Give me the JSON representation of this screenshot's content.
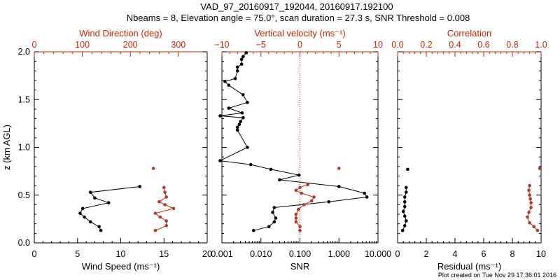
{
  "title_line1": "VAD_97_20160917_192044, 20160917.192100",
  "title_line2": "Nbeams = 8, Elevation angle = 75.0°, scan duration = 27.3 s, SNR Threshold = 0.008",
  "footer": "Plot created on Tue Nov 29 17:36:01 2016",
  "colors": {
    "black": "#000000",
    "red": "#cc2200",
    "dots_red": "#b03a2e"
  },
  "chart_data": [
    {
      "type": "line",
      "ylabel": "z (km AGL)",
      "ylim": [
        0,
        2
      ],
      "yticks": [
        "0.0",
        "0.5",
        "1.0",
        "1.5",
        "2.0"
      ],
      "bottom_axis": {
        "label": "Wind Speed (ms⁻¹)",
        "lim": [
          0,
          20
        ],
        "ticks": [
          "0",
          "5",
          "10",
          "15",
          "20"
        ]
      },
      "top_axis": {
        "label": "Wind Direction (deg)",
        "lim": [
          0,
          360
        ],
        "ticks": [
          "0",
          "100",
          "200",
          "300"
        ]
      },
      "series": [
        {
          "axis": "bottom",
          "color": "black",
          "points": [
            [
              7.7,
              0.13
            ],
            [
              7.5,
              0.17
            ],
            [
              6.5,
              0.22
            ],
            [
              5.8,
              0.27
            ],
            [
              5.3,
              0.31
            ],
            [
              5.6,
              0.36
            ],
            [
              8.6,
              0.42
            ],
            [
              7.0,
              0.47
            ],
            [
              6.5,
              0.53
            ],
            [
              12.2,
              0.59
            ]
          ]
        },
        {
          "axis": "top",
          "color": "red",
          "points": [
            [
              252,
              0.13
            ],
            [
              275,
              0.18
            ],
            [
              275,
              0.23
            ],
            [
              262,
              0.27
            ],
            [
              252,
              0.31
            ],
            [
              290,
              0.36
            ],
            [
              272,
              0.4
            ],
            [
              260,
              0.43
            ],
            [
              275,
              0.48
            ],
            [
              272,
              0.53
            ],
            [
              270,
              0.58
            ],
            [
              248,
              0.78
            ]
          ],
          "connected": 11
        }
      ]
    },
    {
      "type": "line",
      "ylim": [
        0,
        2
      ],
      "bottom_axis": {
        "label": "SNR",
        "scale": "log",
        "lim": [
          0.001,
          10
        ],
        "ticks": [
          "0.001",
          "0.010",
          "0.100",
          "1.000",
          "10.000"
        ]
      },
      "top_axis": {
        "label": "Vertical velocity (ms⁻¹)",
        "lim": [
          -10,
          10
        ],
        "ticks": [
          "−10",
          "−5",
          "0",
          "5",
          "10"
        ]
      },
      "zero_line": 0,
      "series": [
        {
          "axis": "bottom",
          "color": "black",
          "points": [
            [
              0.0065,
              0.13
            ],
            [
              0.016,
              0.17
            ],
            [
              0.022,
              0.22
            ],
            [
              0.024,
              0.26
            ],
            [
              0.02,
              0.32
            ],
            [
              0.022,
              0.37
            ],
            [
              0.55,
              0.43
            ],
            [
              5.2,
              0.48
            ],
            [
              4.5,
              0.52
            ],
            [
              1.0,
              0.59
            ],
            [
              0.03,
              0.66
            ],
            [
              0.095,
              0.71
            ],
            [
              0.018,
              0.77
            ],
            [
              0.0055,
              0.82
            ],
            [
              0.0009,
              0.86
            ],
            [
              0.0045,
              1.0
            ],
            [
              0.0025,
              1.18
            ],
            [
              0.0025,
              1.21
            ],
            [
              0.0028,
              1.24
            ],
            [
              0.003,
              1.27
            ],
            [
              0.0035,
              1.31
            ],
            [
              0.0009,
              1.33
            ],
            [
              0.0033,
              1.36
            ],
            [
              0.0015,
              1.41
            ],
            [
              0.0045,
              1.47
            ],
            [
              0.0035,
              1.55
            ],
            [
              0.0015,
              1.65
            ],
            [
              0.0012,
              1.69
            ],
            [
              0.0022,
              1.72
            ],
            [
              0.0025,
              1.8
            ],
            [
              0.0025,
              1.84
            ],
            [
              0.0032,
              1.87
            ],
            [
              0.0032,
              1.92
            ],
            [
              0.0035,
              1.95
            ],
            [
              0.0042,
              1.99
            ]
          ],
          "connected": 36
        },
        {
          "axis": "top",
          "color": "red",
          "points": [
            [
              0,
              0.13
            ],
            [
              0,
              0.17
            ],
            [
              -0.5,
              0.22
            ],
            [
              -0.5,
              0.26
            ],
            [
              -0.5,
              0.3
            ],
            [
              -0.2,
              0.35
            ],
            [
              0.5,
              0.4
            ],
            [
              1.5,
              0.44
            ],
            [
              1.8,
              0.48
            ],
            [
              0.2,
              0.52
            ],
            [
              -0.5,
              0.55
            ],
            [
              0,
              0.58
            ],
            [
              1.0,
              0.61
            ],
            [
              5.0,
              0.78
            ]
          ],
          "connected": 13
        }
      ]
    },
    {
      "type": "scatter",
      "ylim": [
        0,
        2
      ],
      "bottom_axis": {
        "label": "Residual (ms⁻¹)",
        "lim": [
          0,
          10
        ],
        "ticks": [
          "0",
          "2",
          "4",
          "6",
          "8",
          "10"
        ]
      },
      "top_axis": {
        "label": "Correlation",
        "lim": [
          0,
          1
        ],
        "ticks": [
          "0.0",
          "0.2",
          "0.4",
          "0.6",
          "0.8",
          "1.0"
        ]
      },
      "series": [
        {
          "axis": "bottom",
          "color": "black",
          "points": [
            [
              0.35,
              0.13
            ],
            [
              0.5,
              0.18
            ],
            [
              0.6,
              0.23
            ],
            [
              0.5,
              0.28
            ],
            [
              0.4,
              0.33
            ],
            [
              0.5,
              0.38
            ],
            [
              0.5,
              0.43
            ],
            [
              0.5,
              0.48
            ],
            [
              0.6,
              0.53
            ],
            [
              0.6,
              0.58
            ],
            [
              0.7,
              0.77
            ]
          ],
          "connected": 10
        },
        {
          "axis": "top",
          "color": "red",
          "points": [
            [
              0.975,
              0.13
            ],
            [
              0.95,
              0.17
            ],
            [
              0.92,
              0.21
            ],
            [
              0.905,
              0.27
            ],
            [
              0.915,
              0.32
            ],
            [
              0.93,
              0.37
            ],
            [
              0.93,
              0.42
            ],
            [
              0.925,
              0.46
            ],
            [
              0.92,
              0.5
            ],
            [
              0.915,
              0.55
            ],
            [
              0.92,
              0.6
            ],
            [
              0.99,
              0.78
            ]
          ],
          "connected": 11
        }
      ]
    }
  ]
}
